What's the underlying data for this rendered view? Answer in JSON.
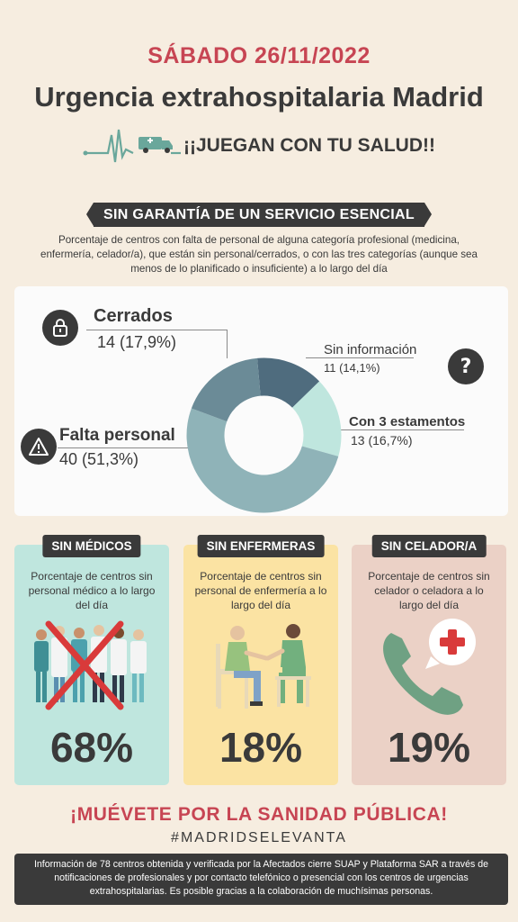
{
  "header": {
    "date": "SÁBADO 26/11/2022",
    "title": "Urgencia extrahospitalaria Madrid",
    "tagline": "¡¡JUEGAN CON TU SALUD!!"
  },
  "section": {
    "banner": "SIN GARANTÍA DE UN SERVICIO  ESENCIAL",
    "description": "Porcentaje de centros con falta de personal de alguna categoría profesional (medicina, enfermería, celador/a), que están sin personal/cerrados, o con las tres categorías (aunque sea menos de lo planificado o insuficiente) a lo largo del día"
  },
  "donut": {
    "segments": [
      {
        "label": "Sin información",
        "value": "11 (14,1%)",
        "count": 11,
        "color": "#4f6c7e"
      },
      {
        "label": "Con 3 estamentos",
        "value": "13 (16,7%)",
        "count": 13,
        "color": "#bfe6de"
      },
      {
        "label": "Falta personal",
        "value": "40 (51,3%)",
        "count": 40,
        "color": "#8fb3b8"
      },
      {
        "label": "Cerrados",
        "value": "14 (17,9%)",
        "count": 14,
        "color": "#6b8b97"
      }
    ],
    "icons": {
      "cerrados": "lock-icon",
      "sin_informacion": "question-icon",
      "falta_personal": "warning-icon"
    }
  },
  "cards": [
    {
      "tag": "SIN MÉDICOS",
      "description": "Porcentaje de centros sin personal médico a lo largo del día",
      "percent": "68%",
      "bg": "#bfe6de"
    },
    {
      "tag": "SIN ENFERMERAS",
      "description": "Porcentaje de centros sin personal de enfermería a lo largo del día",
      "percent": "18%",
      "bg": "#fbe3a3"
    },
    {
      "tag": "SIN CELADOR/A",
      "description": "Porcentaje de centros sin celador o celadora a lo largo del día",
      "percent": "19%",
      "bg": "#ebd1c6"
    }
  ],
  "cta": "¡MUÉVETE POR LA SANIDAD PÚBLICA!",
  "hashtag": "#MADRIDSELEVANTA",
  "footer": "Información de 78 centros obtenida y verificada por la Afectados cierre SUAP y Plataforma SAR a través de notificaciones de profesionales y por contacto telefónico o presencial con los centros de urgencias extrahospitalarias. Es posible gracias a la colaboración de muchísimas personas.",
  "colors": {
    "accent": "#c74553",
    "dark": "#3a3a3a",
    "background": "#f6ede0"
  }
}
